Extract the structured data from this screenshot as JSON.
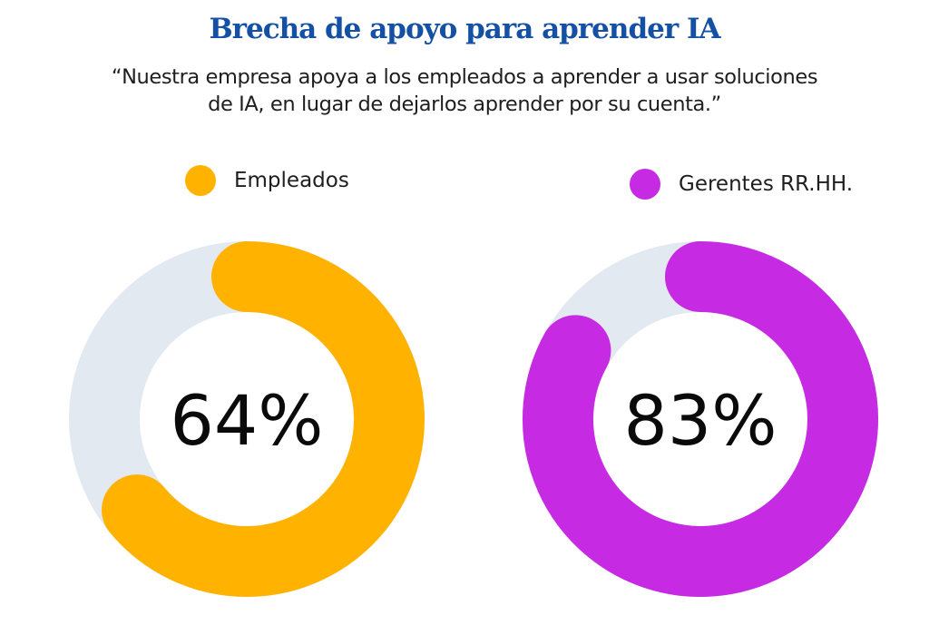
{
  "chart_data": {
    "type": "donut",
    "title": "Brecha de apoyo para aprender IA",
    "subtitle_lines": [
      "“Nuestra empresa apoya a los empleados a aprender a usar soluciones",
      "de IA, en lugar de dejarlos aprender por su cuenta.”"
    ],
    "track_color": "#e3e9f1",
    "series": [
      {
        "name": "Empleados",
        "value": 64,
        "label": "64%",
        "color": "#ffb300"
      },
      {
        "name": "Gerentes RR.HH.",
        "value": 83,
        "label": "83%",
        "color": "#c62ae3"
      }
    ]
  }
}
